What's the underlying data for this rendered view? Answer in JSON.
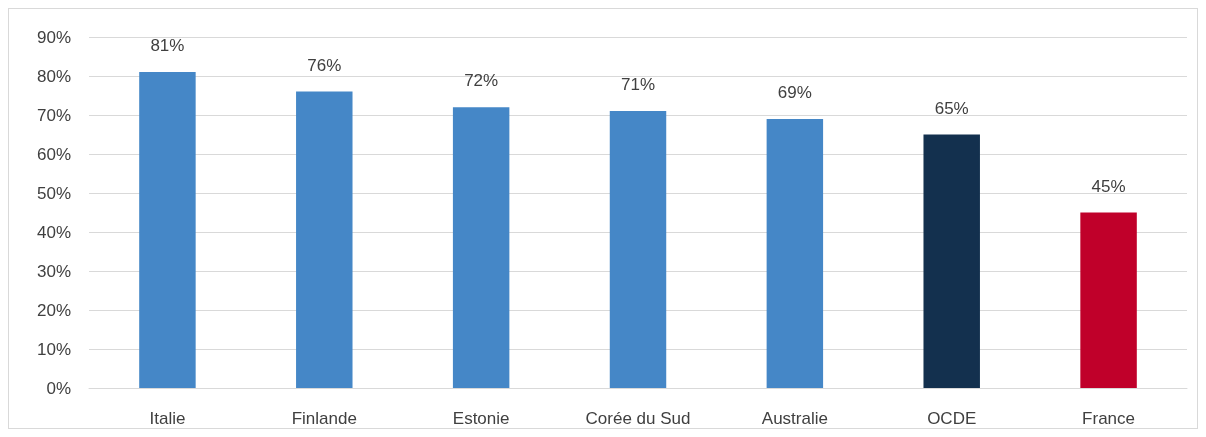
{
  "chart_data": {
    "type": "bar",
    "categories": [
      "Italie",
      "Finlande",
      "Estonie",
      "Corée du Sud",
      "Australie",
      "OCDE",
      "France"
    ],
    "values": [
      81,
      76,
      72,
      71,
      69,
      65,
      45
    ],
    "colors": [
      "#4587c7",
      "#4587c7",
      "#4587c7",
      "#4587c7",
      "#4587c7",
      "#13304e",
      "#c0002a"
    ],
    "value_labels": [
      "81%",
      "76%",
      "72%",
      "71%",
      "69%",
      "65%",
      "45%"
    ],
    "ylim": [
      0,
      90
    ],
    "yticks": [
      {
        "value": 0,
        "label": "0%"
      },
      {
        "value": 10,
        "label": "10%"
      },
      {
        "value": 20,
        "label": "20%"
      },
      {
        "value": 30,
        "label": "30%"
      },
      {
        "value": 40,
        "label": "40%"
      },
      {
        "value": 50,
        "label": "50%"
      },
      {
        "value": 60,
        "label": "60%"
      },
      {
        "value": 70,
        "label": "70%"
      },
      {
        "value": 80,
        "label": "80%"
      },
      {
        "value": 90,
        "label": "90%"
      }
    ],
    "grid": "y"
  }
}
